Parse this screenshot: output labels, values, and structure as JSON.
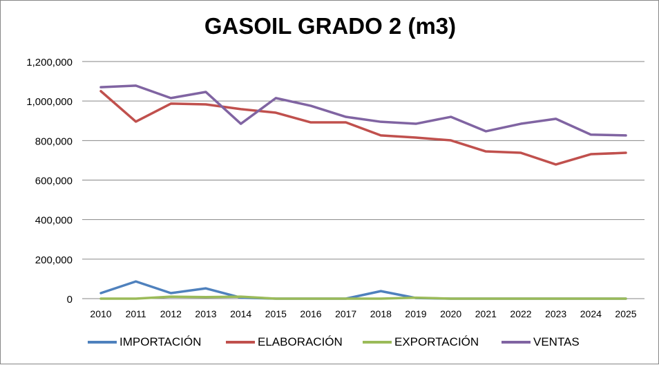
{
  "chart_data": {
    "type": "line",
    "title": "GASOIL GRADO 2 (m3)",
    "xlabel": "",
    "ylabel": "",
    "x": [
      "2010",
      "2011",
      "2012",
      "2013",
      "2014",
      "2015",
      "2016",
      "2017",
      "2018",
      "2019",
      "2020",
      "2021",
      "2022",
      "2023",
      "2024",
      "2025"
    ],
    "ylim": [
      0,
      1200000
    ],
    "yticks": [
      0,
      200000,
      400000,
      600000,
      800000,
      1000000,
      1200000
    ],
    "ytick_labels": [
      "0",
      "200,000",
      "400,000",
      "600,000",
      "800,000",
      "1,000,000",
      "1,200,000"
    ],
    "grid": true,
    "legend_position": "bottom",
    "series": [
      {
        "name": "IMPORTACIÓN",
        "color": "#4F81BD",
        "values": [
          28000,
          87000,
          28000,
          52000,
          5000,
          0,
          0,
          0,
          38000,
          3000,
          0,
          0,
          0,
          0,
          0,
          0
        ]
      },
      {
        "name": "ELABORACIÓN",
        "color": "#C0504D",
        "values": [
          1050000,
          896000,
          987000,
          983000,
          959000,
          941000,
          892000,
          892000,
          826000,
          815000,
          801000,
          745000,
          738000,
          679000,
          731000,
          738000
        ]
      },
      {
        "name": "EXPORTACIÓN",
        "color": "#9BBB59",
        "values": [
          0,
          0,
          10000,
          8000,
          10000,
          0,
          0,
          0,
          0,
          5000,
          0,
          0,
          0,
          0,
          0,
          0
        ]
      },
      {
        "name": "VENTAS",
        "color": "#8064A2",
        "values": [
          1070000,
          1078000,
          1015000,
          1046000,
          885000,
          1015000,
          976000,
          920000,
          895000,
          885000,
          920000,
          847000,
          885000,
          910000,
          830000,
          826000
        ]
      }
    ]
  }
}
